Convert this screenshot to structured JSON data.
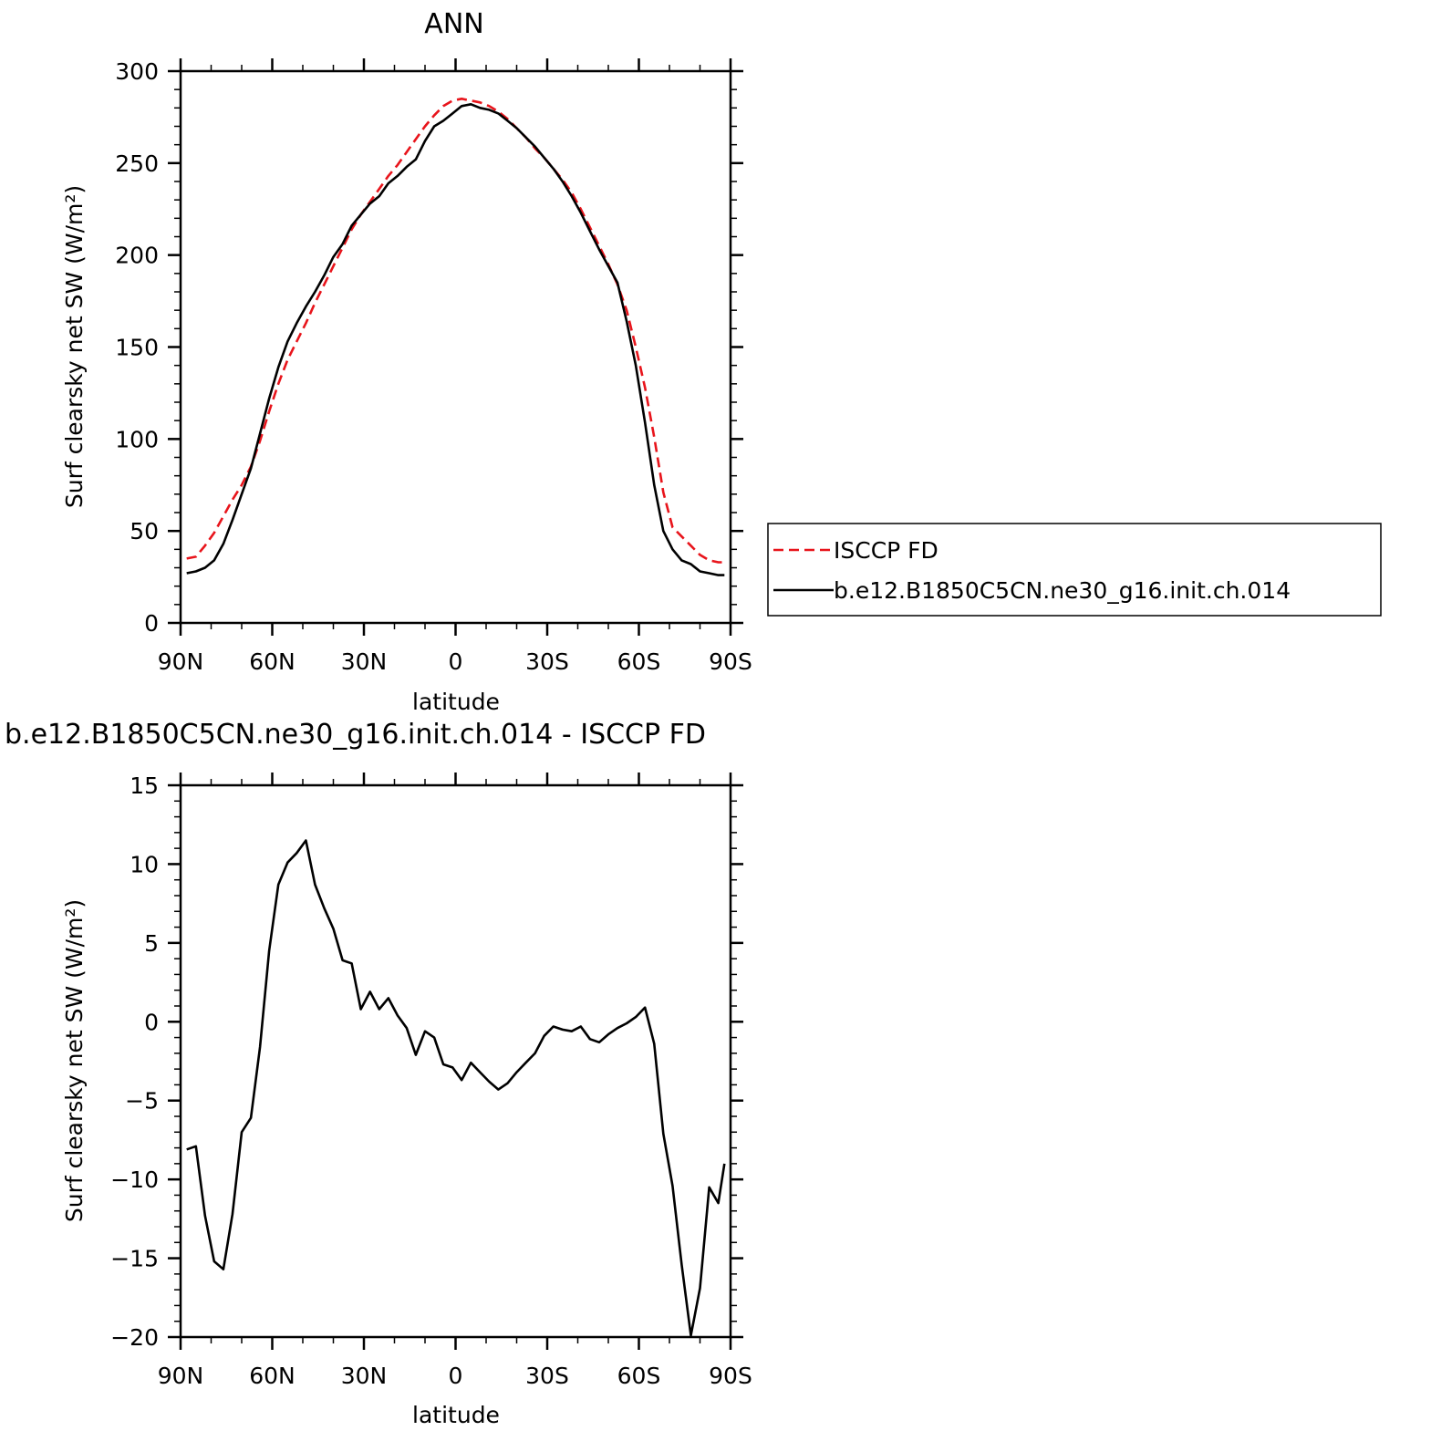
{
  "chart_data": [
    {
      "type": "line",
      "title": "ANN",
      "xlabel": "latitude",
      "ylabel": "Surf clearsky net SW (W/m²)",
      "xlim": [
        -90,
        90
      ],
      "ylim": [
        0,
        300
      ],
      "xticks": [
        {
          "value": -90,
          "label": "90N"
        },
        {
          "value": -60,
          "label": "60N"
        },
        {
          "value": -30,
          "label": "30N"
        },
        {
          "value": 0,
          "label": "0"
        },
        {
          "value": 30,
          "label": "30S"
        },
        {
          "value": 60,
          "label": "60S"
        },
        {
          "value": 90,
          "label": "90S"
        }
      ],
      "yticks": [
        0,
        50,
        100,
        150,
        200,
        250,
        300
      ],
      "grid": false,
      "legend": "right",
      "series": [
        {
          "name": "ISCCP FD",
          "color": "#e8141b",
          "dash": "dashed",
          "x": [
            -88,
            -85,
            -82,
            -79,
            -76,
            -73,
            -70,
            -67,
            -64,
            -61,
            -58,
            -55,
            -52,
            -49,
            -46,
            -43,
            -40,
            -37,
            -34,
            -31,
            -28,
            -25,
            -22,
            -19,
            -16,
            -13,
            -10,
            -7,
            -4,
            -1,
            2,
            5,
            8,
            11,
            14,
            17,
            20,
            23,
            26,
            29,
            32,
            35,
            38,
            41,
            44,
            47,
            50,
            53,
            56,
            59,
            62,
            65,
            68,
            71,
            74,
            77,
            80,
            83,
            86,
            88
          ],
          "y": [
            35,
            36,
            42,
            49,
            58,
            67,
            75,
            85,
            99,
            115,
            130,
            143,
            153,
            163,
            174,
            184,
            194,
            204,
            214,
            222,
            229,
            236,
            243,
            249,
            256,
            263,
            270,
            276,
            281,
            284,
            285,
            284,
            283,
            281,
            278,
            274,
            269,
            264,
            258,
            253,
            247,
            241,
            234,
            225,
            215,
            205,
            195,
            184,
            170,
            150,
            128,
            101,
            71,
            52,
            47,
            42,
            37,
            34,
            33,
            33
          ]
        },
        {
          "name": "b.e12.B1850C5CN.ne30_g16.init.ch.014",
          "color": "#000000",
          "dash": "solid",
          "x": [
            -88,
            -85,
            -82,
            -79,
            -76,
            -73,
            -70,
            -67,
            -64,
            -61,
            -58,
            -55,
            -52,
            -49,
            -46,
            -43,
            -40,
            -37,
            -34,
            -31,
            -28,
            -25,
            -22,
            -19,
            -16,
            -13,
            -10,
            -7,
            -4,
            -1,
            2,
            5,
            8,
            11,
            14,
            17,
            20,
            23,
            26,
            29,
            32,
            35,
            38,
            41,
            44,
            47,
            50,
            53,
            56,
            59,
            62,
            65,
            68,
            71,
            74,
            77,
            80,
            83,
            86,
            88
          ],
          "y": [
            27,
            28,
            30,
            34,
            43,
            56,
            70,
            84,
            103,
            122,
            139,
            153,
            163,
            172,
            180,
            189,
            199,
            206,
            216,
            222,
            228,
            232,
            239,
            243,
            248,
            252,
            262,
            270,
            273,
            277,
            281,
            282,
            280,
            279,
            277,
            273,
            269,
            264,
            259,
            253,
            247,
            240,
            232,
            223,
            213,
            203,
            194,
            185,
            164,
            140,
            109,
            75,
            50,
            40,
            34,
            32,
            28,
            27,
            26,
            26
          ]
        }
      ]
    },
    {
      "type": "line",
      "title": "b.e12.B1850C5CN.ne30_g16.init.ch.014 - ISCCP FD",
      "xlabel": "latitude",
      "ylabel": "Surf clearsky net SW (W/m²)",
      "xlim": [
        -90,
        90
      ],
      "ylim": [
        -20,
        15
      ],
      "xticks": [
        {
          "value": -90,
          "label": "90N"
        },
        {
          "value": -60,
          "label": "60N"
        },
        {
          "value": -30,
          "label": "30N"
        },
        {
          "value": 0,
          "label": "0"
        },
        {
          "value": 30,
          "label": "30S"
        },
        {
          "value": 60,
          "label": "60S"
        },
        {
          "value": 90,
          "label": "90S"
        }
      ],
      "yticks": [
        -20,
        -15,
        -10,
        -5,
        0,
        5,
        10,
        15
      ],
      "grid": false,
      "series": [
        {
          "color": "#000000",
          "dash": "solid",
          "x": [
            -88,
            -85,
            -82,
            -79,
            -76,
            -73,
            -70,
            -67,
            -64,
            -61,
            -58,
            -55,
            -52,
            -49,
            -46,
            -43,
            -40,
            -37,
            -34,
            -31,
            -28,
            -25,
            -22,
            -19,
            -16,
            -13,
            -10,
            -7,
            -4,
            -1,
            2,
            5,
            8,
            11,
            14,
            17,
            20,
            23,
            26,
            29,
            32,
            35,
            38,
            41,
            44,
            47,
            50,
            53,
            56,
            59,
            62,
            65,
            68,
            71,
            74,
            77,
            80,
            83,
            86,
            88
          ],
          "y": [
            -8.1,
            -7.9,
            -12.3,
            -15.2,
            -15.7,
            -12.2,
            -7.0,
            -6.1,
            -1.6,
            4.5,
            8.7,
            10.1,
            10.7,
            11.5,
            8.7,
            7.2,
            5.9,
            3.9,
            3.7,
            0.8,
            1.9,
            0.8,
            1.5,
            0.4,
            -0.4,
            -2.1,
            -0.6,
            -1.0,
            -2.7,
            -2.9,
            -3.7,
            -2.6,
            -3.2,
            -3.8,
            -4.3,
            -3.9,
            -3.2,
            -2.6,
            -2.0,
            -0.9,
            -0.3,
            -0.5,
            -0.6,
            -0.3,
            -1.1,
            -1.3,
            -0.8,
            -0.4,
            -0.1,
            0.3,
            0.9,
            -1.4,
            -7.1,
            -10.4,
            -15.4,
            -19.9,
            -16.9,
            -10.5,
            -11.5,
            -9.0
          ]
        }
      ]
    }
  ],
  "colors": {
    "model": "#000000",
    "obs": "#e8141b",
    "axis": "#000000",
    "background": "#ffffff"
  }
}
